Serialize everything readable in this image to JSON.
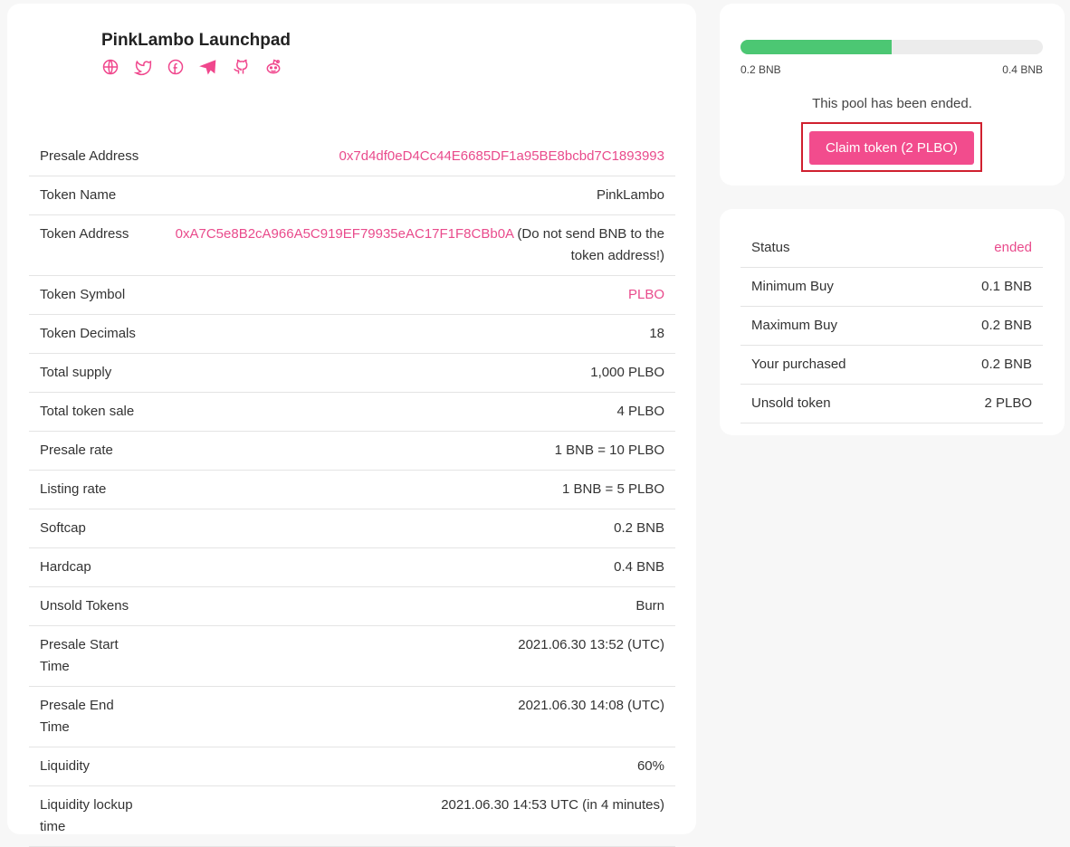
{
  "header": {
    "title": "PinkLambo Launchpad",
    "socials": [
      "globe-icon",
      "twitter-icon",
      "facebook-icon",
      "telegram-icon",
      "github-icon",
      "reddit-icon"
    ]
  },
  "details": [
    {
      "label": "Presale Address",
      "value": "0x7d4df0eD4Cc44E6685DF1a95BE8bcbd7C1893993",
      "pink": true
    },
    {
      "label": "Token Name",
      "value": "PinkLambo"
    },
    {
      "label": "Token Address",
      "value": "0xA7C5e8B2cA966A5C919EF79935eAC17F1F8CBb0A",
      "note": " (Do not send BNB to the token address!)",
      "pink": true
    },
    {
      "label": "Token Symbol",
      "value": "PLBO",
      "pink": true
    },
    {
      "label": "Token Decimals",
      "value": "18"
    },
    {
      "label": "Total supply",
      "value": "1,000 PLBO"
    },
    {
      "label": "Total token sale",
      "value": "4 PLBO"
    },
    {
      "label": "Presale rate",
      "value": "1 BNB = 10 PLBO"
    },
    {
      "label": "Listing rate",
      "value": "1 BNB = 5 PLBO"
    },
    {
      "label": "Softcap",
      "value": "0.2 BNB"
    },
    {
      "label": "Hardcap",
      "value": "0.4 BNB"
    },
    {
      "label": "Unsold Tokens",
      "value": "Burn"
    },
    {
      "label": "Presale Start Time",
      "value": "2021.06.30 13:52 (UTC)"
    },
    {
      "label": "Presale End Time",
      "value": "2021.06.30 14:08 (UTC)"
    },
    {
      "label": "Liquidity",
      "value": "60%"
    },
    {
      "label": "Liquidity lockup time",
      "value": "2021.06.30 14:53 UTC (in 4 minutes)"
    }
  ],
  "progress": {
    "percent": 50,
    "min_label": "0.2 BNB",
    "max_label": "0.4 BNB",
    "fill_color": "#4cc773"
  },
  "pool_status_text": "This pool has been ended.",
  "claim_button": "Claim token (2 PLBO)",
  "stats": [
    {
      "label": "Status",
      "value": "ended",
      "pink": true
    },
    {
      "label": "Minimum Buy",
      "value": "0.1 BNB"
    },
    {
      "label": "Maximum Buy",
      "value": "0.2 BNB"
    },
    {
      "label": "Your purchased",
      "value": "0.2 BNB"
    },
    {
      "label": "Unsold token",
      "value": "2 PLBO"
    }
  ],
  "colors": {
    "accent": "#f24c8d"
  }
}
